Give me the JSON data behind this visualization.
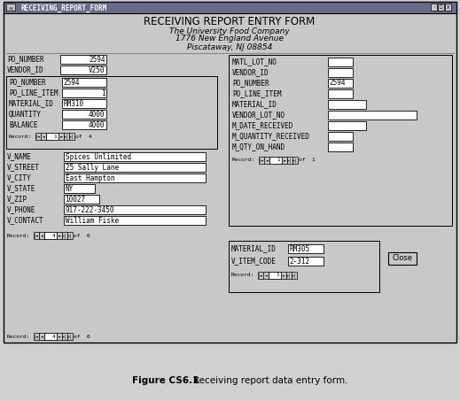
{
  "title_bar": "RECEIVING_REPORT_FORM",
  "form_title": "RECEIVING REPORT ENTRY FORM",
  "subtitle1": "The University Food Company",
  "subtitle2": "1776 New England Avenue",
  "subtitle3": "Piscataway, NJ 08854",
  "bg_color": "#c8c8c8",
  "titlebar_bg": "#808080",
  "field_bg": "#ffffff",
  "caption_bold": "Figure CS6.1",
  "caption_rest": "    Receiving report data entry form."
}
